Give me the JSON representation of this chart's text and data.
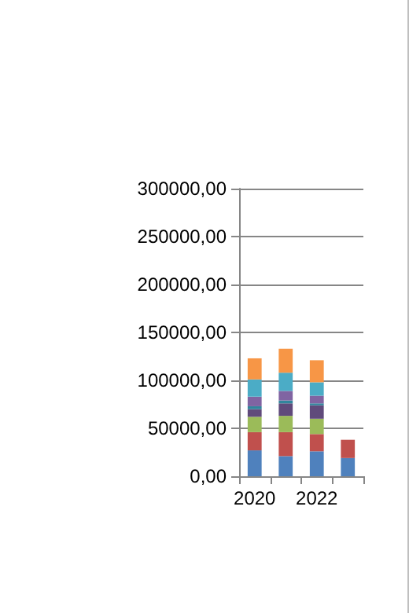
{
  "chart_data": {
    "type": "bar",
    "stacked": true,
    "categories": [
      "2020",
      null,
      "2022",
      null
    ],
    "series": [
      {
        "color": "#4f81bd",
        "values": [
          27000,
          21000,
          26000,
          19000
        ]
      },
      {
        "color": "#c0504d",
        "values": [
          19000,
          25000,
          18000,
          19000
        ]
      },
      {
        "color": "#9bbb59",
        "values": [
          16000,
          17000,
          16000,
          null
        ]
      },
      {
        "color": "#604a7b",
        "values": [
          8000,
          13000,
          14000,
          null
        ]
      },
      {
        "color": "#31859c",
        "values": [
          3000,
          3000,
          2000,
          null
        ]
      },
      {
        "color": "#8064a2",
        "values": [
          10000,
          10000,
          8000,
          null
        ]
      },
      {
        "color": "#4bacc6",
        "values": [
          18000,
          19000,
          14000,
          null
        ]
      },
      {
        "color": "#f79646",
        "values": [
          22000,
          25000,
          23000,
          null
        ]
      }
    ],
    "ylim": [
      0,
      300000
    ],
    "yticks": [
      {
        "value": 0,
        "label": "0,00"
      },
      {
        "value": 50000,
        "label": "50000,00"
      },
      {
        "value": 100000,
        "label": "100000,00"
      },
      {
        "value": 150000,
        "label": "150000,00"
      },
      {
        "value": 200000,
        "label": "200000,00"
      },
      {
        "value": 250000,
        "label": "250000,00"
      },
      {
        "value": 300000,
        "label": "300000,00"
      }
    ],
    "grid": "y"
  }
}
